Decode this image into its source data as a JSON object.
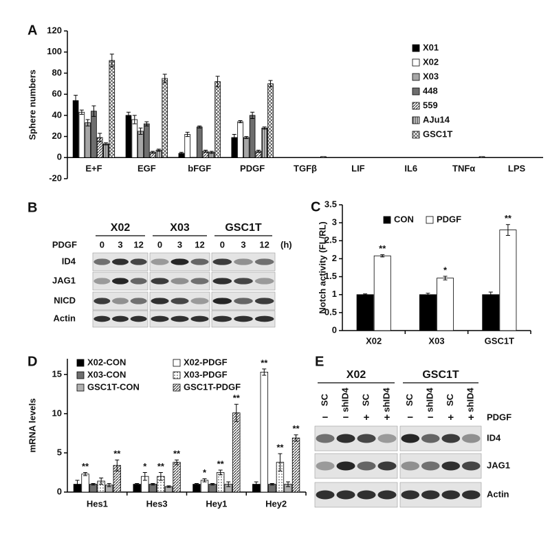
{
  "chart_data": [
    {
      "type": "bar",
      "panel_label": "A",
      "ylabel": "Sphere numbers",
      "categories": [
        "E+F",
        "EGF",
        "bFGF",
        "PDGF",
        "TGFβ",
        "LIF",
        "IL6",
        "TNFα",
        "LPS"
      ],
      "series": [
        {
          "name": "X01",
          "color": "#000000",
          "values": [
            54,
            40,
            4,
            19,
            0,
            0,
            0,
            0,
            0
          ],
          "errors": [
            5,
            3,
            1,
            3,
            0,
            0,
            0,
            0,
            0
          ]
        },
        {
          "name": "X02",
          "color": "#ffffff",
          "values": [
            43,
            36,
            22,
            34,
            0,
            0,
            0,
            0,
            0
          ],
          "errors": [
            2,
            4,
            2,
            1,
            0,
            0,
            0,
            0,
            0
          ]
        },
        {
          "name": "X03",
          "color": "#a6a6a6",
          "values": [
            33,
            25,
            0,
            19,
            0,
            0,
            0,
            0,
            0
          ],
          "errors": [
            3,
            3,
            0,
            1,
            0,
            0,
            0,
            0,
            0
          ]
        },
        {
          "name": "448",
          "color": "#6e6e6e",
          "values": [
            44,
            32,
            29,
            40,
            0,
            0,
            0,
            0,
            0
          ],
          "errors": [
            5,
            2,
            1,
            3,
            0,
            0,
            0,
            0,
            0
          ]
        },
        {
          "name": "559",
          "color": "#bbbbbb",
          "pattern": "diagonal",
          "values": [
            19,
            5,
            6,
            6,
            0,
            0,
            0,
            0,
            0
          ],
          "errors": [
            4,
            1,
            1,
            1,
            0,
            0,
            0,
            0,
            0
          ]
        },
        {
          "name": "AJu14",
          "color": "#777777",
          "pattern": "vertical",
          "values": [
            13,
            7,
            5,
            28,
            0,
            0,
            0,
            0,
            0
          ],
          "errors": [
            1,
            1,
            1,
            1,
            0,
            0,
            0,
            0,
            0
          ]
        },
        {
          "name": "GSC1T",
          "color": "#cccccc",
          "pattern": "crosshatch",
          "values": [
            92,
            75,
            72,
            70,
            1,
            0,
            0,
            1,
            0
          ],
          "errors": [
            6,
            4,
            5,
            3,
            0,
            0,
            0,
            0,
            0
          ]
        }
      ],
      "ylim": [
        -20,
        120
      ],
      "yticks": [
        -20,
        0,
        20,
        40,
        60,
        80,
        100,
        120
      ],
      "legend": "right",
      "grid": false
    },
    {
      "type": "bar",
      "panel_label": "C",
      "ylabel": "Notch activity (FL/RL)",
      "categories": [
        "X02",
        "X03",
        "GSC1T"
      ],
      "series": [
        {
          "name": "CON",
          "color": "#000000",
          "values": [
            1,
            1,
            1
          ],
          "errors": [
            0.02,
            0.04,
            0.07
          ]
        },
        {
          "name": "PDGF",
          "color": "#ffffff",
          "values": [
            2.08,
            1.46,
            2.8
          ],
          "errors": [
            0.03,
            0.05,
            0.15
          ],
          "labels": [
            "**",
            "*",
            "**"
          ]
        }
      ],
      "ylim": [
        0,
        3.5
      ],
      "yticks": [
        0,
        0.5,
        1,
        1.5,
        2,
        2.5,
        3,
        3.5
      ],
      "legend": "top",
      "grid": false
    },
    {
      "type": "bar",
      "panel_label": "D",
      "ylabel": "mRNA levels",
      "categories": [
        "Hes1",
        "Hes3",
        "Hey1",
        "Hey2"
      ],
      "series": [
        {
          "name": "X02-CON",
          "color": "#000000",
          "values": [
            1,
            1,
            1,
            1
          ],
          "errors": [
            0.5,
            0.1,
            0.1,
            0.3
          ]
        },
        {
          "name": "X02-PDGF",
          "color": "#ffffff",
          "values": [
            2.3,
            2.0,
            1.5,
            15.3
          ],
          "errors": [
            0.2,
            0.5,
            0.2,
            0.4
          ],
          "labels": [
            "**",
            "*",
            "*",
            "**"
          ]
        },
        {
          "name": "X03-CON",
          "color": "#6e6e6e",
          "values": [
            1,
            1,
            1,
            1
          ],
          "errors": [
            0.1,
            0.1,
            0.1,
            0.1
          ]
        },
        {
          "name": "X03-PDGF",
          "color": "#ffffff",
          "pattern": "dots",
          "values": [
            1.4,
            2.0,
            2.5,
            3.8
          ],
          "errors": [
            0.4,
            0.5,
            0.3,
            1.1
          ],
          "labels": [
            null,
            "**",
            "**",
            "**"
          ]
        },
        {
          "name": "GSC1T-CON",
          "color": "#b0b0b0",
          "values": [
            0.9,
            0.7,
            1,
            1
          ],
          "errors": [
            0.2,
            0.1,
            0.3,
            0.3
          ]
        },
        {
          "name": "GSC1T-PDGF",
          "color": "#888888",
          "pattern": "diagonal",
          "values": [
            3.4,
            3.8,
            10.1,
            6.9
          ],
          "errors": [
            0.7,
            0.3,
            1.1,
            0.4
          ],
          "labels": [
            "**",
            "**",
            "**",
            "**"
          ]
        }
      ],
      "ylim": [
        0,
        17
      ],
      "yticks": [
        0,
        5,
        10,
        15
      ],
      "legend": "top",
      "grid": false
    }
  ],
  "blots": [
    {
      "panel_label": "B",
      "groups": [
        "X02",
        "X03",
        "GSC1T"
      ],
      "treatment": "PDGF",
      "lanes": [
        "0",
        "3",
        "12",
        "0",
        "3",
        "12",
        "0",
        "3",
        "12"
      ],
      "unit": "(h)",
      "rows": [
        "ID4",
        "JAG1",
        "NICD",
        "Actin"
      ]
    },
    {
      "panel_label": "E",
      "groups": [
        "X02",
        "GSC1T"
      ],
      "treatment": "PDGF",
      "lanes": [
        "SC",
        "shID4",
        "SC",
        "shID4",
        "SC",
        "shID4",
        "SC",
        "shID4"
      ],
      "treatment_signs": [
        "−",
        "−",
        "+",
        "+",
        "−",
        "−",
        "+",
        "+"
      ],
      "rows": [
        "ID4",
        "JAG1",
        "Actin"
      ]
    }
  ]
}
